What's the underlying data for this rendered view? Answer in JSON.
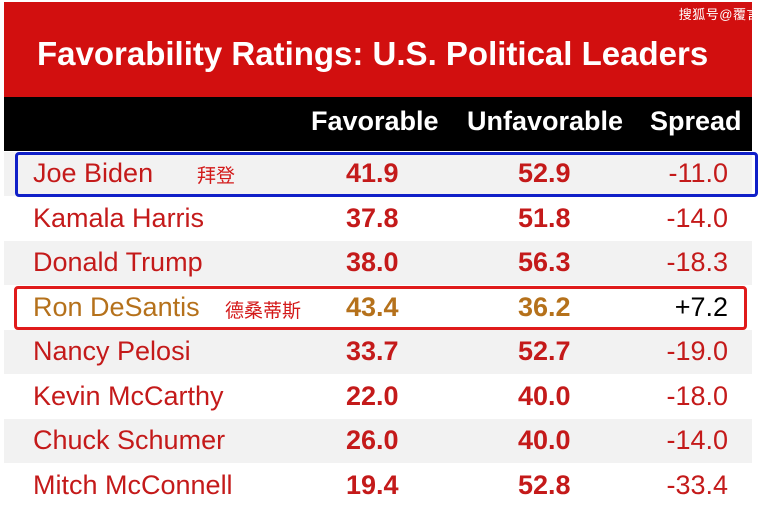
{
  "watermark": "搜狐号@覆言",
  "chart_data": {
    "type": "table",
    "title": "Favorability Ratings: U.S. Political Leaders",
    "columns": [
      "Favorable",
      "Unfavorable",
      "Spread"
    ],
    "rows": [
      {
        "name": "Joe Biden",
        "favorable": "41.9",
        "unfavorable": "52.9",
        "spread": "-11.0",
        "note": "拜登"
      },
      {
        "name": "Kamala Harris",
        "favorable": "37.8",
        "unfavorable": "51.8",
        "spread": "-14.0"
      },
      {
        "name": "Donald Trump",
        "favorable": "38.0",
        "unfavorable": "56.3",
        "spread": "-18.3"
      },
      {
        "name": "Ron DeSantis",
        "favorable": "43.4",
        "unfavorable": "36.2",
        "spread": "+7.2",
        "note": "德桑蒂斯"
      },
      {
        "name": "Nancy Pelosi",
        "favorable": "33.7",
        "unfavorable": "52.7",
        "spread": "-19.0"
      },
      {
        "name": "Kevin McCarthy",
        "favorable": "22.0",
        "unfavorable": "40.0",
        "spread": "-18.0"
      },
      {
        "name": "Chuck Schumer",
        "favorable": "26.0",
        "unfavorable": "40.0",
        "spread": "-14.0"
      },
      {
        "name": "Mitch McConnell",
        "favorable": "19.4",
        "unfavorable": "52.8",
        "spread": "-33.4"
      }
    ]
  },
  "colors": {
    "title_bg": "#d20f0f",
    "header_bg": "#000000",
    "value_red": "#c41a1a",
    "highlight_gold": "#b5711b",
    "box_blue": "#1020c8",
    "box_red": "#e01b1b"
  }
}
